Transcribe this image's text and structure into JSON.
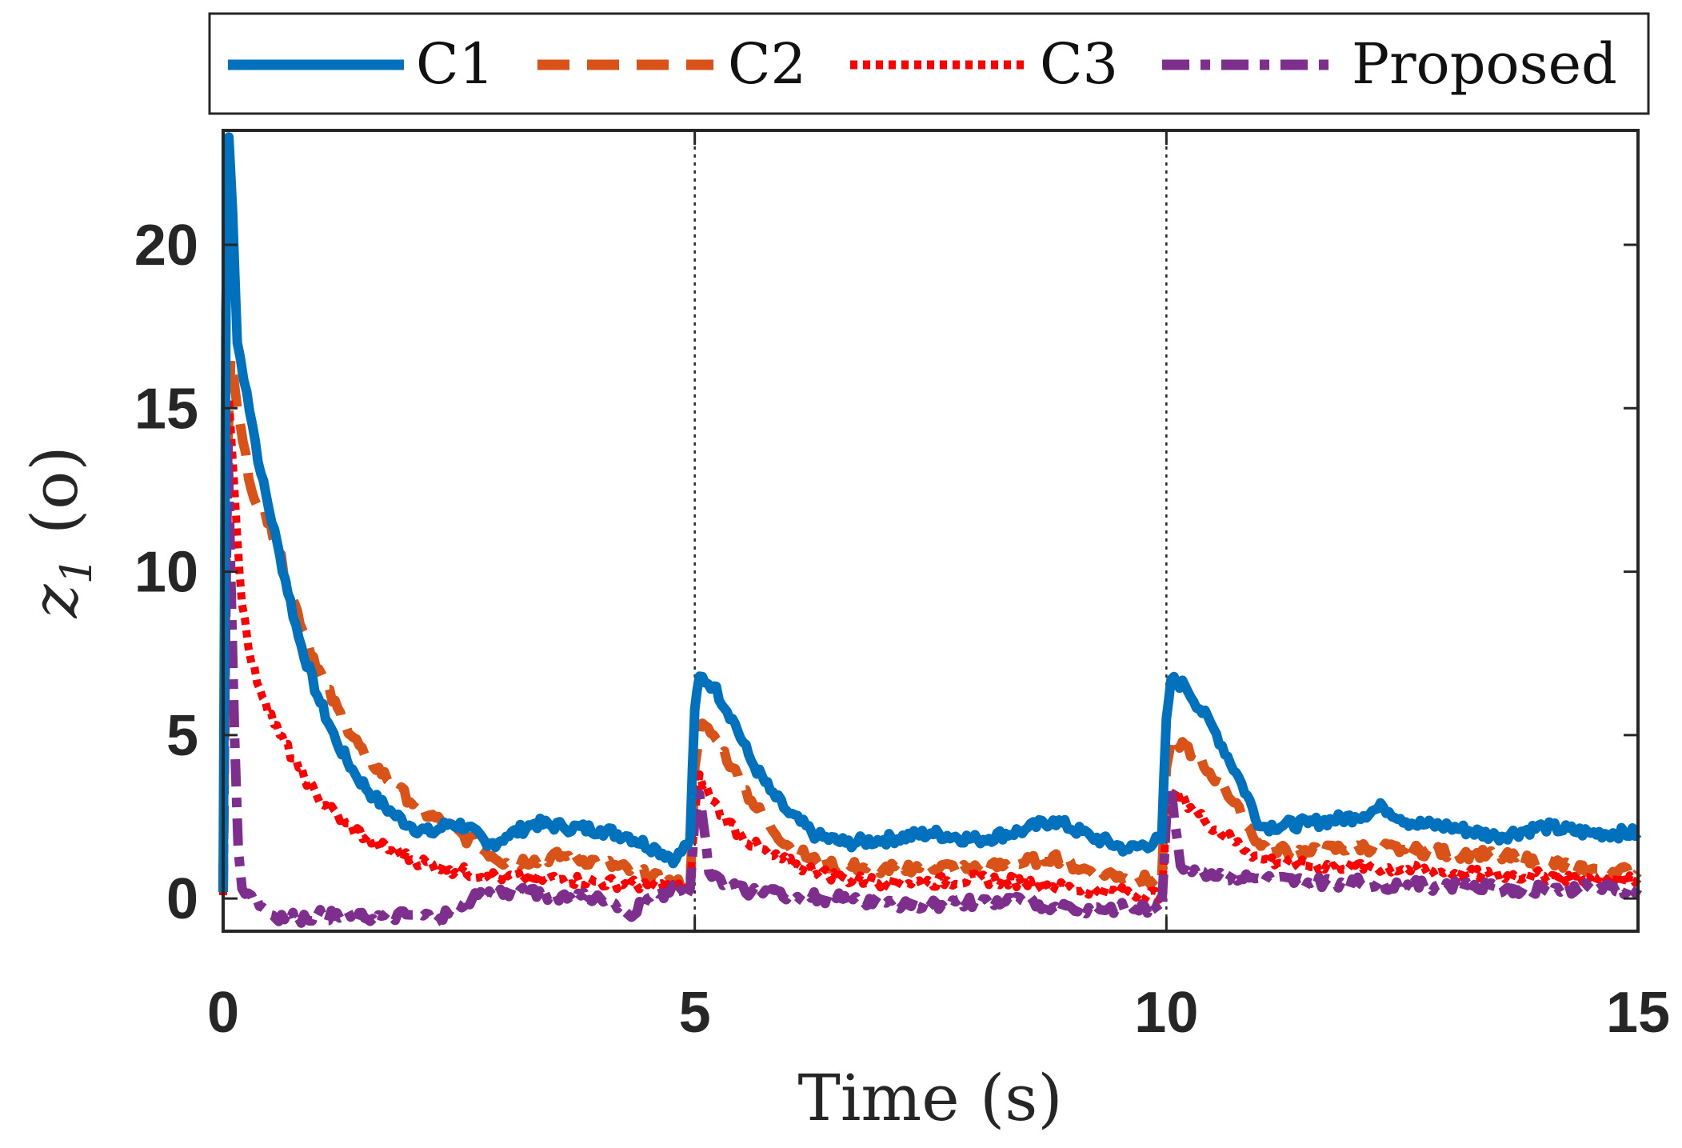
{
  "chart_data": {
    "type": "line",
    "xlabel": "Time (s)",
    "ylabel_main": "z",
    "ylabel_sub": "1",
    "ylabel_unit": "(o)",
    "xlim": [
      0,
      15
    ],
    "ylim": [
      -1,
      23.5
    ],
    "xticks": [
      0,
      5,
      10,
      15
    ],
    "xtick_labels": [
      "0",
      "5",
      "10",
      "15"
    ],
    "yticks": [
      0,
      5,
      10,
      15,
      20
    ],
    "ytick_labels": [
      "0",
      "5",
      "10",
      "15",
      "20"
    ],
    "grid": false,
    "reference_lines_x": [
      5,
      10
    ],
    "legend_position": "top, outside plot",
    "series": [
      {
        "name": "C1",
        "color": "#0072BD",
        "style": "solid",
        "x": [
          0,
          0.03,
          0.06,
          0.1,
          0.15,
          0.25,
          0.4,
          0.6,
          0.8,
          1.0,
          1.2,
          1.4,
          1.6,
          1.8,
          2.0,
          2.2,
          2.4,
          2.6,
          2.8,
          3.0,
          3.3,
          3.6,
          4.0,
          4.3,
          4.6,
          4.8,
          4.95,
          5.0,
          5.05,
          5.2,
          5.4,
          5.6,
          5.8,
          6.0,
          6.3,
          6.6,
          7.0,
          7.5,
          8.0,
          8.5,
          8.8,
          9.2,
          9.6,
          9.95,
          10.0,
          10.05,
          10.2,
          10.5,
          10.8,
          11.0,
          11.5,
          12.0,
          12.3,
          12.6,
          13.0,
          13.5,
          14.0,
          14.5,
          15.0
        ],
        "y": [
          0.2,
          18,
          23.3,
          21,
          17,
          15.5,
          13,
          10.5,
          8,
          6.2,
          4.8,
          3.8,
          3.1,
          2.6,
          2.2,
          2.0,
          2.3,
          2.2,
          1.6,
          1.9,
          2.3,
          2.2,
          2.1,
          1.9,
          1.5,
          1.2,
          1.8,
          5.8,
          6.8,
          6.5,
          5.5,
          4.2,
          3.3,
          2.6,
          1.9,
          1.7,
          1.8,
          2.0,
          1.8,
          2.1,
          2.4,
          1.9,
          1.5,
          1.8,
          5.5,
          6.7,
          6.5,
          5.2,
          3.5,
          2.2,
          2.3,
          2.5,
          2.8,
          2.3,
          2.2,
          1.9,
          2.2,
          2.0,
          2.0
        ]
      },
      {
        "name": "C2",
        "color": "#D95319",
        "style": "dashed",
        "x": [
          0,
          0.04,
          0.08,
          0.15,
          0.3,
          0.5,
          0.7,
          0.9,
          1.1,
          1.3,
          1.5,
          1.8,
          2.1,
          2.4,
          2.7,
          3.0,
          3.3,
          3.6,
          4.0,
          4.4,
          4.7,
          4.95,
          5.0,
          5.05,
          5.2,
          5.4,
          5.6,
          5.8,
          6.0,
          6.3,
          6.6,
          7.0,
          7.5,
          8.0,
          8.5,
          8.8,
          9.1,
          9.5,
          9.95,
          10.0,
          10.05,
          10.2,
          10.4,
          10.6,
          10.8,
          11.0,
          11.5,
          12.0,
          12.5,
          13.0,
          13.5,
          14.0,
          14.5,
          15.0
        ],
        "y": [
          0.3,
          13,
          16.5,
          15,
          12.5,
          11.5,
          9.5,
          7.8,
          6.4,
          5.3,
          4.4,
          3.5,
          2.7,
          2.2,
          1.6,
          1.1,
          1.2,
          1.3,
          1.1,
          0.8,
          0.5,
          0.4,
          4.0,
          5.3,
          5.0,
          4.0,
          3.0,
          2.2,
          1.6,
          1.1,
          1.0,
          0.9,
          1.0,
          0.9,
          1.1,
          1.3,
          0.9,
          0.7,
          0.5,
          4.0,
          4.8,
          4.7,
          4.0,
          3.5,
          2.5,
          1.6,
          1.4,
          1.6,
          1.5,
          1.4,
          1.3,
          1.1,
          0.9,
          0.8
        ]
      },
      {
        "name": "C3",
        "color": "#FF0000",
        "style": "dotted",
        "x": [
          0,
          0.03,
          0.06,
          0.12,
          0.2,
          0.3,
          0.45,
          0.6,
          0.8,
          1.0,
          1.3,
          1.6,
          2.0,
          2.4,
          2.8,
          3.2,
          3.6,
          4.0,
          4.5,
          4.95,
          5.0,
          5.05,
          5.15,
          5.3,
          5.5,
          5.8,
          6.2,
          6.6,
          7.0,
          7.5,
          8.0,
          8.5,
          9.0,
          9.5,
          9.95,
          10.0,
          10.05,
          10.2,
          10.4,
          10.7,
          11.0,
          11.5,
          12.0,
          12.5,
          13.0,
          13.5,
          14.0,
          14.5,
          15.0
        ],
        "y": [
          0.1,
          10,
          15.3,
          12.5,
          9,
          7.2,
          6.0,
          5.0,
          4.0,
          3.1,
          2.3,
          1.7,
          1.2,
          0.9,
          0.7,
          0.6,
          0.6,
          0.5,
          0.4,
          0.3,
          2.5,
          3.8,
          3.2,
          2.5,
          1.9,
          1.3,
          0.9,
          0.6,
          0.5,
          0.5,
          0.6,
          0.5,
          0.3,
          0.2,
          0.1,
          2.5,
          3.3,
          3.0,
          2.4,
          1.8,
          1.2,
          1.0,
          1.0,
          0.9,
          0.8,
          0.7,
          0.7,
          0.6,
          0.6
        ]
      },
      {
        "name": "Proposed",
        "color": "#7E2F8E",
        "style": "dash-dot",
        "x": [
          0,
          0.02,
          0.05,
          0.08,
          0.12,
          0.16,
          0.2,
          0.3,
          0.5,
          0.8,
          1.0,
          1.5,
          2.0,
          2.3,
          2.5,
          2.7,
          3.0,
          3.5,
          4.0,
          4.3,
          4.5,
          4.7,
          4.95,
          5.0,
          5.05,
          5.15,
          5.3,
          5.6,
          6.0,
          6.5,
          7.0,
          7.5,
          8.0,
          8.5,
          9.0,
          9.5,
          9.95,
          10.0,
          10.05,
          10.15,
          10.3,
          10.6,
          11.0,
          11.5,
          12.0,
          12.5,
          13.0,
          13.5,
          14.0,
          14.5,
          15.0
        ],
        "y": [
          0.2,
          7,
          14,
          10,
          5,
          1.5,
          0.3,
          0.1,
          -0.5,
          -0.6,
          -0.5,
          -0.6,
          -0.5,
          -0.6,
          -0.2,
          0.1,
          0.2,
          0.1,
          0.0,
          -0.5,
          0.0,
          0.2,
          0.3,
          2.5,
          3.2,
          0.8,
          0.4,
          0.2,
          0.1,
          0.0,
          -0.1,
          -0.2,
          -0.1,
          -0.1,
          -0.3,
          -0.3,
          -0.3,
          2.5,
          3.4,
          1.0,
          0.9,
          0.7,
          0.6,
          0.5,
          0.5,
          0.4,
          0.4,
          0.3,
          0.3,
          0.3,
          0.3
        ]
      }
    ]
  }
}
